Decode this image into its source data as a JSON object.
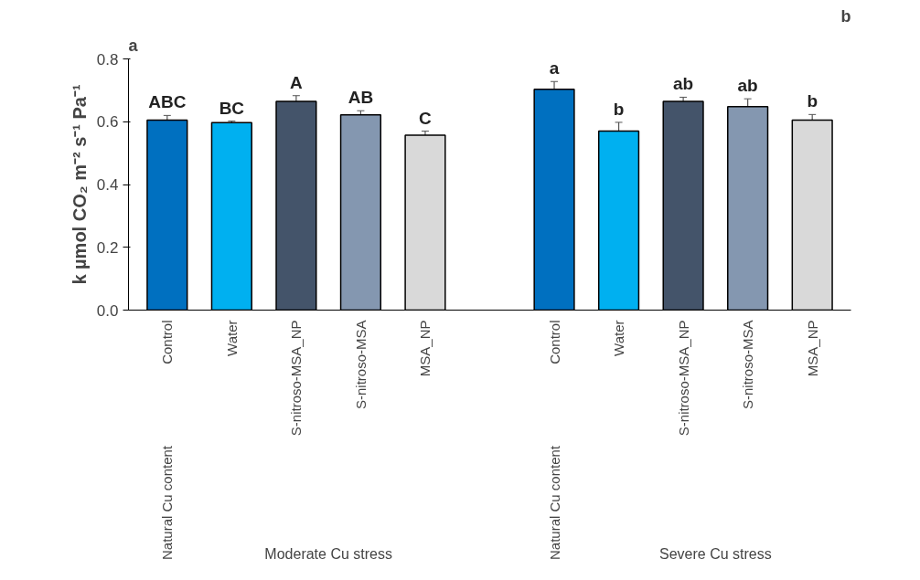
{
  "chart_data": {
    "type": "bar",
    "ylabel": "k µmol CO₂ m⁻² s⁻¹ Pa⁻¹",
    "categories": [
      "Control",
      "Water",
      "S-nitroso-MSA_NP",
      "S-nitroso-MSA",
      "MSA_NP",
      null,
      "Control",
      "Water",
      "S-nitroso-MSA_NP",
      "S-nitroso-MSA",
      "MSA_NP"
    ],
    "values": [
      0.605,
      0.597,
      0.665,
      0.622,
      0.557,
      null,
      0.703,
      0.57,
      0.665,
      0.648,
      0.605
    ],
    "errors": [
      0.015,
      0.005,
      0.018,
      0.013,
      0.013,
      null,
      0.025,
      0.028,
      0.013,
      0.025,
      0.018
    ],
    "colors": [
      "#0070c0",
      "#00b0f0",
      "#44546a",
      "#8497b0",
      "#d9d9d9",
      null,
      "#0070c0",
      "#00b0f0",
      "#44546a",
      "#8497b0",
      "#d9d9d9"
    ],
    "value_labels": [
      "ABC",
      "BC",
      "A",
      "AB",
      "C",
      null,
      "a",
      "b",
      "ab",
      "ab",
      "b"
    ],
    "ylim": [
      0,
      0.8
    ],
    "yticks": [
      {
        "value": 0,
        "label": "0.0"
      },
      {
        "value": 0.2,
        "label": "0.2"
      },
      {
        "value": 0.4,
        "label": "0.4"
      },
      {
        "value": 0.6,
        "label": "0.6"
      },
      {
        "value": 0.8,
        "label": "0.8"
      }
    ],
    "annotations": [
      "a",
      "b",
      "Natural Cu content",
      "Moderate Cu stress",
      "Natural Cu content",
      "Severe Cu stress"
    ],
    "grid": false
  }
}
